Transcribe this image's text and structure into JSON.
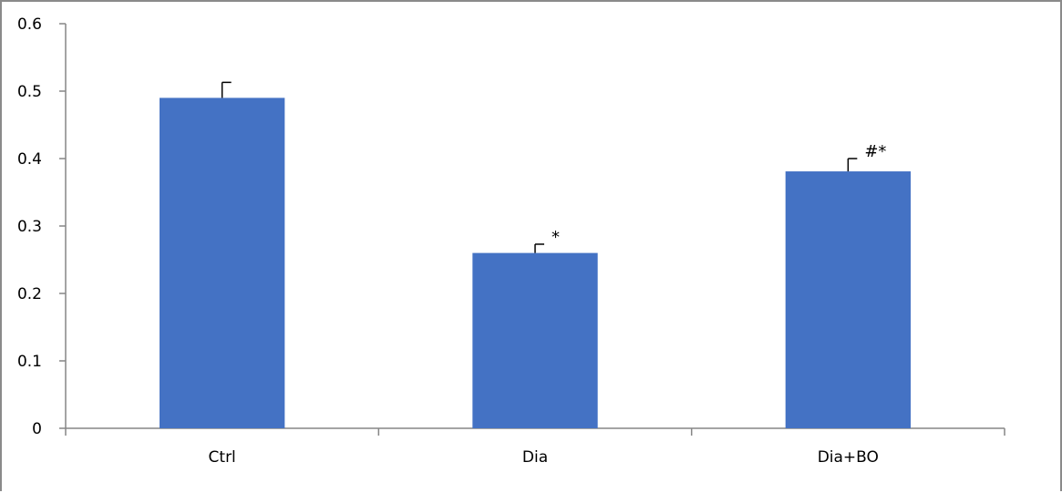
{
  "chart_data": {
    "type": "bar",
    "categories": [
      "Ctrl",
      "Dia",
      "Dia+BO"
    ],
    "values": [
      0.49,
      0.26,
      0.381
    ],
    "error_upper": [
      0.513,
      0.273,
      0.4
    ],
    "annotations": [
      "",
      "*",
      "#*"
    ],
    "ylim": [
      0,
      0.6
    ],
    "yticks": [
      "0",
      "0.1",
      "0.2",
      "0.3",
      "0.4",
      "0.5",
      "0.6"
    ],
    "title": "",
    "xlabel": "",
    "ylabel": "",
    "grid": false,
    "bar_color": "#4472c4"
  }
}
